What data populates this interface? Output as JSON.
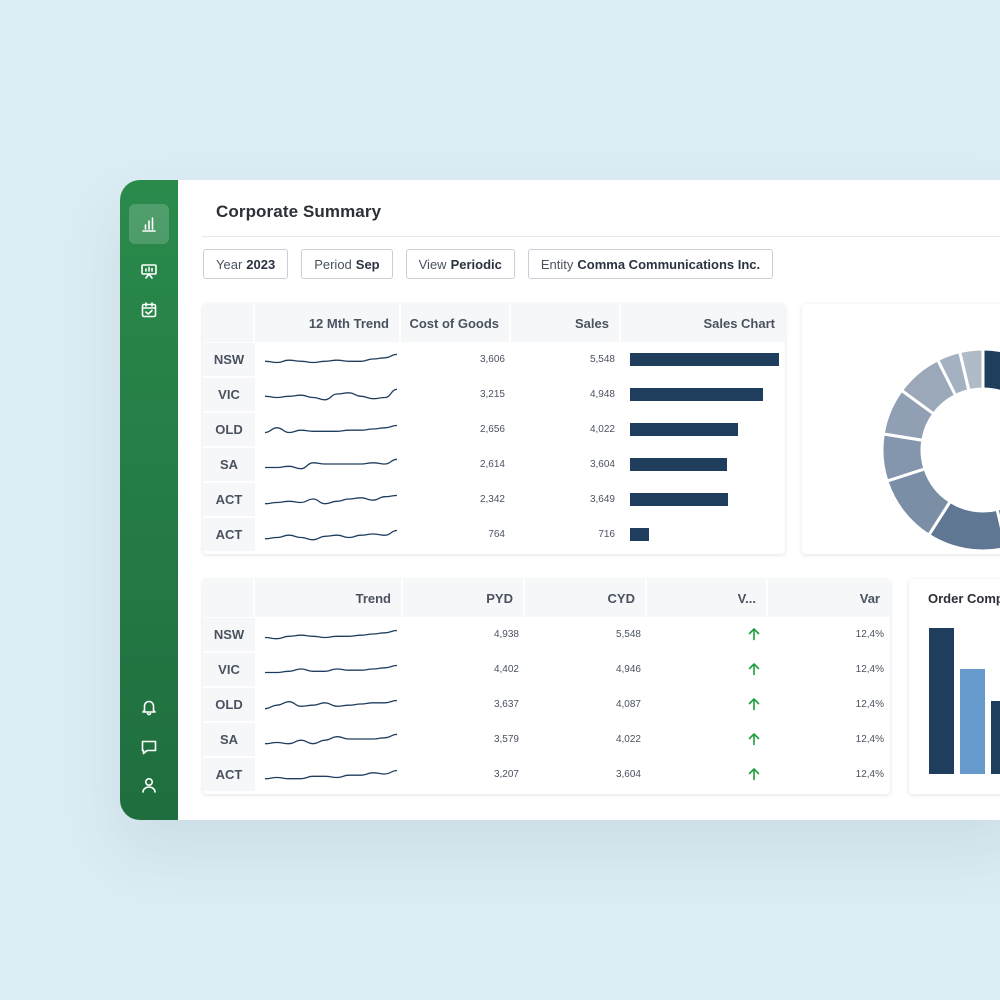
{
  "page": {
    "title": "Corporate Summary"
  },
  "sidebar": {
    "top_icons": [
      "bar-chart-icon",
      "presentation-icon",
      "calendar-check-icon"
    ],
    "bottom_icons": [
      "bell-icon",
      "message-icon",
      "user-icon"
    ]
  },
  "filters": [
    {
      "label": "Year",
      "value": "2023"
    },
    {
      "label": "Period",
      "value": "Sep"
    },
    {
      "label": "View",
      "value": "Periodic"
    },
    {
      "label": "Entity",
      "value": "Comma Communications Inc."
    }
  ],
  "sales_table": {
    "headers": {
      "trend": "12 Mth Trend",
      "cogs": "Cost of Goods",
      "sales": "Sales",
      "chart": "Sales Chart"
    },
    "rows": [
      {
        "region": "NSW",
        "cogs": "3,606",
        "sales": "5,548",
        "bar_value": 5548,
        "spark": [
          8,
          9,
          7,
          8,
          9,
          8,
          7,
          8,
          8,
          6,
          5,
          2
        ]
      },
      {
        "region": "VIC",
        "cogs": "3,215",
        "sales": "4,948",
        "bar_value": 4948,
        "spark": [
          8,
          9,
          8,
          7,
          9,
          11,
          6,
          5,
          8,
          10,
          9,
          2
        ]
      },
      {
        "region": "OLD",
        "cogs": "2,656",
        "sales": "4,022",
        "bar_value": 4022,
        "spark": [
          9,
          5,
          9,
          7,
          8,
          8,
          8,
          7,
          7,
          6,
          5,
          3
        ]
      },
      {
        "region": "SA",
        "cogs": "2,614",
        "sales": "3,604",
        "bar_value": 3604,
        "spark": [
          9,
          9,
          8,
          10,
          5,
          6,
          6,
          6,
          6,
          5,
          6,
          2
        ]
      },
      {
        "region": "ACT",
        "cogs": "2,342",
        "sales": "3,649",
        "bar_value": 3649,
        "spark": [
          10,
          9,
          8,
          9,
          6,
          10,
          8,
          6,
          5,
          7,
          4,
          3
        ]
      },
      {
        "region": "ACT",
        "cogs": "764",
        "sales": "716",
        "bar_value": 716,
        "spark": [
          10,
          9,
          7,
          9,
          11,
          8,
          7,
          9,
          7,
          6,
          7,
          3
        ]
      }
    ],
    "bar_max": 5548,
    "bar_color": "#1f3e5e"
  },
  "variance_table": {
    "headers": {
      "trend": "Trend",
      "pyd": "PYD",
      "cyd": "CYD",
      "v": "V...",
      "var": "Var"
    },
    "rows": [
      {
        "region": "NSW",
        "pyd": "4,938",
        "cyd": "5,548",
        "var": "12,4%",
        "spark": [
          9,
          10,
          8,
          7,
          8,
          9,
          8,
          8,
          7,
          6,
          5,
          3
        ]
      },
      {
        "region": "VIC",
        "pyd": "4,402",
        "cyd": "4,946",
        "var": "12,4%",
        "spark": [
          9,
          9,
          8,
          6,
          8,
          8,
          6,
          7,
          7,
          6,
          5,
          3
        ]
      },
      {
        "region": "OLD",
        "pyd": "3,637",
        "cyd": "4,087",
        "var": "12,4%",
        "spark": [
          10,
          7,
          4,
          8,
          7,
          5,
          8,
          7,
          6,
          5,
          5,
          3
        ]
      },
      {
        "region": "SA",
        "pyd": "3,579",
        "cyd": "4,022",
        "var": "12,4%",
        "spark": [
          10,
          9,
          10,
          7,
          10,
          7,
          4,
          6,
          6,
          6,
          5,
          2
        ]
      },
      {
        "region": "ACT",
        "pyd": "3,207",
        "cyd": "3,604",
        "var": "12,4%",
        "spark": [
          10,
          9,
          10,
          10,
          8,
          8,
          9,
          7,
          7,
          5,
          6,
          3
        ]
      }
    ],
    "up_color": "#1e9e3e"
  },
  "donut": {
    "slices": [
      {
        "value": 18,
        "color": "#1f3e5e"
      },
      {
        "value": 13,
        "color": "#2d4b6b"
      },
      {
        "value": 9,
        "color": "#4f6a88"
      },
      {
        "value": 11,
        "color": "#5f7792"
      },
      {
        "value": 9.5,
        "color": "#7a8ea5"
      },
      {
        "value": 6.5,
        "color": "#8496ad"
      },
      {
        "value": 6.5,
        "color": "#909fb3"
      },
      {
        "value": 6.5,
        "color": "#9aa8ba"
      },
      {
        "value": 3.2,
        "color": "#a4b1c1"
      },
      {
        "value": 3.2,
        "color": "#b0bbc8"
      }
    ]
  },
  "order_chart": {
    "title": "Order Comp",
    "bars": [
      {
        "value": 100,
        "color": "#1f3e5e"
      },
      {
        "value": 72,
        "color": "#6699cc"
      },
      {
        "value": 50,
        "color": "#1f3e5e"
      }
    ]
  }
}
